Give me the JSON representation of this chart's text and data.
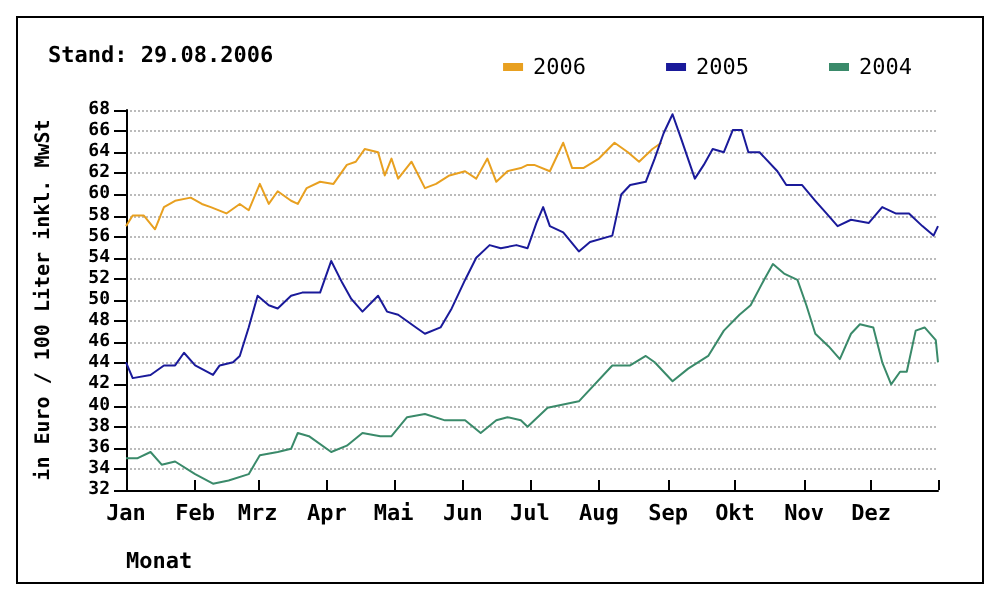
{
  "chart_data": {
    "type": "line",
    "title": "Stand: 29.08.2006",
    "xlabel": "Monat",
    "ylabel": "in Euro / 100 Liter inkl. MwSt",
    "xlim": [
      "--01-01",
      "--12-31"
    ],
    "xticks": [
      {
        "value": "--01-01",
        "label": "Jan"
      },
      {
        "value": "--02-01",
        "label": "Feb"
      },
      {
        "value": "--03-01",
        "label": "Mrz"
      },
      {
        "value": "--04-01",
        "label": "Apr"
      },
      {
        "value": "--05-01",
        "label": "Mai"
      },
      {
        "value": "--06-01",
        "label": "Jun"
      },
      {
        "value": "--07-01",
        "label": "Jul"
      },
      {
        "value": "--08-01",
        "label": "Aug"
      },
      {
        "value": "--09-01",
        "label": "Sep"
      },
      {
        "value": "--10-01",
        "label": "Okt"
      },
      {
        "value": "--11-01",
        "label": "Nov"
      },
      {
        "value": "--12-01",
        "label": "Dez"
      },
      {
        "value": "--12-31",
        "label": null
      }
    ],
    "ylim": [
      32,
      68
    ],
    "yticks": [
      32,
      34,
      36,
      38,
      40,
      42,
      44,
      46,
      48,
      50,
      52,
      54,
      56,
      58,
      60,
      62,
      64,
      66,
      68
    ],
    "grid": "y",
    "legend": "top right",
    "marker": "none",
    "line_style": "solid",
    "series": [
      {
        "name": "2006",
        "color": "#e8a020",
        "x": [
          "--01-01",
          "--01-04",
          "--01-09",
          "--01-14",
          "--01-18",
          "--01-23",
          "--01-30",
          "--02-04",
          "--02-08",
          "--02-15",
          "--02-21",
          "--02-25",
          "--03-02",
          "--03-06",
          "--03-10",
          "--03-16",
          "--03-19",
          "--03-23",
          "--03-29",
          "--04-04",
          "--04-10",
          "--04-14",
          "--04-18",
          "--04-24",
          "--04-27",
          "--04-30",
          "--05-03",
          "--05-09",
          "--05-15",
          "--05-20",
          "--05-26",
          "--06-02",
          "--06-07",
          "--06-12",
          "--06-16",
          "--06-21",
          "--06-27",
          "--06-30",
          "--07-03",
          "--07-10",
          "--07-16",
          "--07-20",
          "--07-25",
          "--08-01",
          "--08-08",
          "--08-14",
          "--08-19",
          "--08-25",
          "--08-29"
        ],
        "values": [
          57.0,
          58.0,
          58.0,
          56.7,
          58.8,
          59.4,
          59.7,
          59.1,
          58.8,
          58.2,
          59.1,
          58.5,
          61.0,
          59.1,
          60.3,
          59.4,
          59.1,
          60.6,
          61.2,
          61.0,
          62.8,
          63.1,
          64.3,
          64.0,
          61.8,
          63.4,
          61.5,
          63.1,
          60.6,
          61.0,
          61.8,
          62.2,
          61.5,
          63.4,
          61.2,
          62.2,
          62.5,
          62.8,
          62.8,
          62.2,
          64.9,
          62.5,
          62.5,
          63.4,
          64.9,
          64.0,
          63.1,
          64.3,
          64.9
        ]
      },
      {
        "name": "2005",
        "color": "#1a1a9a",
        "x": [
          "--01-01",
          "--01-04",
          "--01-12",
          "--01-18",
          "--01-23",
          "--01-27",
          "--02-01",
          "--02-09",
          "--02-12",
          "--02-18",
          "--02-21",
          "--02-25",
          "--03-01",
          "--03-06",
          "--03-10",
          "--03-16",
          "--03-21",
          "--03-29",
          "--04-03",
          "--04-08",
          "--04-12",
          "--04-17",
          "--04-24",
          "--04-28",
          "--05-03",
          "--05-11",
          "--05-15",
          "--05-22",
          "--05-27",
          "--06-02",
          "--06-07",
          "--06-13",
          "--06-18",
          "--06-25",
          "--06-30",
          "--07-04",
          "--07-07",
          "--07-10",
          "--07-16",
          "--07-23",
          "--07-28",
          "--08-07",
          "--08-11",
          "--08-15",
          "--08-22",
          "--08-26",
          "--08-30",
          "--09-03",
          "--09-07",
          "--09-13",
          "--09-17",
          "--09-21",
          "--09-26",
          "--09-30",
          "--10-04",
          "--10-07",
          "--10-12",
          "--10-20",
          "--10-24",
          "--10-31",
          "--11-06",
          "--11-11",
          "--11-16",
          "--11-22",
          "--11-30",
          "--12-06",
          "--12-12",
          "--12-18",
          "--12-24",
          "--12-29",
          "--12-31"
        ],
        "values": [
          44.1,
          42.6,
          42.9,
          43.8,
          43.8,
          45.0,
          43.8,
          42.9,
          43.8,
          44.1,
          44.7,
          47.4,
          50.4,
          49.5,
          49.2,
          50.4,
          50.7,
          50.7,
          53.7,
          51.6,
          50.1,
          48.9,
          50.4,
          48.9,
          48.6,
          47.4,
          46.8,
          47.4,
          49.2,
          51.9,
          54.0,
          55.2,
          54.9,
          55.2,
          54.9,
          57.3,
          58.8,
          57.0,
          56.4,
          54.6,
          55.5,
          56.1,
          60.0,
          60.9,
          61.2,
          63.4,
          65.8,
          67.6,
          65.2,
          61.5,
          62.8,
          64.3,
          64.0,
          66.1,
          66.1,
          64.0,
          64.0,
          62.2,
          60.9,
          60.9,
          59.4,
          58.2,
          57.0,
          57.6,
          57.3,
          58.8,
          58.2,
          58.2,
          57.0,
          56.1,
          57.0
        ]
      },
      {
        "name": "2004",
        "color": "#3a8a6a",
        "x": [
          "--01-01",
          "--01-06",
          "--01-12",
          "--01-17",
          "--01-23",
          "--02-01",
          "--02-09",
          "--02-16",
          "--02-25",
          "--03-02",
          "--03-10",
          "--03-16",
          "--03-19",
          "--03-24",
          "--04-03",
          "--04-10",
          "--04-17",
          "--04-25",
          "--04-30",
          "--05-07",
          "--05-15",
          "--05-24",
          "--06-02",
          "--06-09",
          "--06-16",
          "--06-21",
          "--06-27",
          "--06-30",
          "--07-09",
          "--07-23",
          "--08-07",
          "--08-15",
          "--08-22",
          "--08-26",
          "--09-03",
          "--09-10",
          "--09-19",
          "--09-26",
          "--10-03",
          "--10-08",
          "--10-14",
          "--10-18",
          "--10-23",
          "--10-29",
          "--11-02",
          "--11-06",
          "--11-12",
          "--11-17",
          "--11-22",
          "--11-26",
          "--12-02",
          "--12-06",
          "--12-10",
          "--12-14",
          "--12-17",
          "--12-21",
          "--12-25",
          "--12-30",
          "--12-31"
        ],
        "values": [
          35.0,
          35.0,
          35.6,
          34.4,
          34.7,
          33.5,
          32.6,
          32.9,
          33.5,
          35.3,
          35.6,
          35.9,
          37.4,
          37.1,
          35.6,
          36.2,
          37.4,
          37.1,
          37.1,
          38.9,
          39.2,
          38.6,
          38.6,
          37.4,
          38.6,
          38.9,
          38.6,
          38.0,
          39.8,
          40.4,
          43.8,
          43.8,
          44.7,
          44.1,
          42.3,
          43.5,
          44.7,
          47.1,
          48.6,
          49.5,
          51.9,
          53.4,
          52.5,
          51.9,
          49.5,
          46.8,
          45.6,
          44.4,
          46.8,
          47.7,
          47.4,
          44.1,
          42.0,
          43.2,
          43.2,
          47.1,
          47.4,
          46.2,
          44.1
        ]
      }
    ]
  }
}
